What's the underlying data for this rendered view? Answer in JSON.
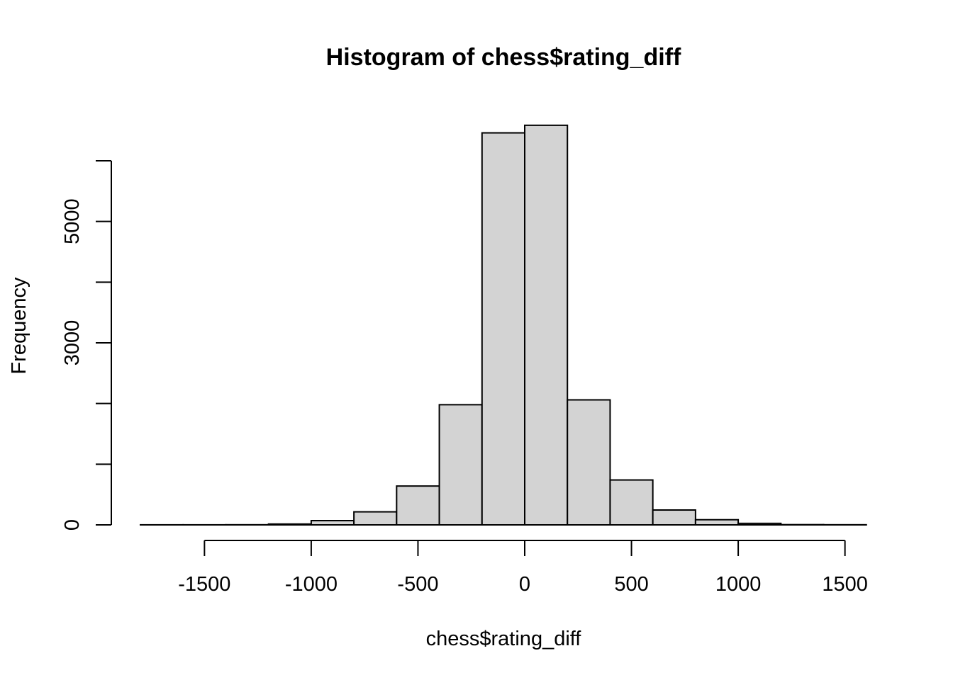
{
  "chart_data": {
    "type": "bar",
    "title": "Histogram of chess$rating_diff",
    "xlabel": "chess$rating_diff",
    "ylabel": "Frequency",
    "bin_width": 200,
    "bins": [
      {
        "start": -1800,
        "end": -1600,
        "count": 1
      },
      {
        "start": -1600,
        "end": -1400,
        "count": 1
      },
      {
        "start": -1400,
        "end": -1200,
        "count": 2
      },
      {
        "start": -1200,
        "end": -1000,
        "count": 14
      },
      {
        "start": -1000,
        "end": -800,
        "count": 70
      },
      {
        "start": -800,
        "end": -600,
        "count": 215
      },
      {
        "start": -600,
        "end": -400,
        "count": 640
      },
      {
        "start": -400,
        "end": -200,
        "count": 1980
      },
      {
        "start": -200,
        "end": 0,
        "count": 6460
      },
      {
        "start": 0,
        "end": 200,
        "count": 6585
      },
      {
        "start": 200,
        "end": 400,
        "count": 2060
      },
      {
        "start": 400,
        "end": 600,
        "count": 740
      },
      {
        "start": 600,
        "end": 800,
        "count": 245
      },
      {
        "start": 800,
        "end": 1000,
        "count": 85
      },
      {
        "start": 1000,
        "end": 1200,
        "count": 25
      },
      {
        "start": 1200,
        "end": 1400,
        "count": 4
      },
      {
        "start": 1400,
        "end": 1600,
        "count": 2
      }
    ],
    "x_ticks": [
      -1500,
      -1000,
      -500,
      0,
      500,
      1000,
      1500
    ],
    "x_tick_labels": [
      "-1500",
      "-1000",
      "-500",
      "0",
      "500",
      "1000",
      "1500"
    ],
    "y_ticks": [
      0,
      1000,
      2000,
      3000,
      4000,
      5000,
      6000
    ],
    "y_tick_labels": [
      "0",
      "",
      "",
      "3000",
      "",
      "5000",
      ""
    ],
    "y_tick_labels_full": [
      "0",
      "1000",
      "2000",
      "3000",
      "4000",
      "5000",
      "6000"
    ],
    "xlim": [
      -1800,
      1600
    ],
    "ylim": [
      0,
      6585
    ],
    "fill_color": "#d3d3d3",
    "stroke_color": "#000000",
    "grid": false
  }
}
